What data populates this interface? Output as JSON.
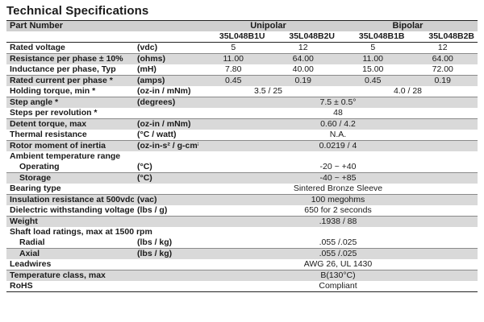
{
  "title": "Technical Specifications",
  "header": {
    "part_number": "Part Number",
    "unipolar": "Unipolar",
    "bipolar": "Bipolar",
    "models": [
      "35L048B1U",
      "35L048B2U",
      "35L048B1B",
      "35L048B2B"
    ]
  },
  "rows": {
    "rated_voltage": {
      "label": "Rated voltage",
      "unit": "(vdc)",
      "values": [
        "5",
        "12",
        "5",
        "12"
      ]
    },
    "resistance": {
      "label": "Resistance per phase ± 10%",
      "unit": "(ohms)",
      "values": [
        "11.00",
        "64.00",
        "11.00",
        "64.00"
      ]
    },
    "inductance": {
      "label": "Inductance per phase, Typ",
      "unit": "(mH)",
      "values": [
        "7.80",
        "40.00",
        "15.00",
        "72.00"
      ]
    },
    "rated_current": {
      "label": "Rated current per phase *",
      "unit": "(amps)",
      "values": [
        "0.45",
        "0.19",
        "0.45",
        "0.19"
      ]
    },
    "holding_torque": {
      "label": "Holding torque, min *",
      "unit": "(oz-in / mNm)",
      "unipolar": "3.5 / 25",
      "bipolar": "4.0 / 28"
    },
    "step_angle": {
      "label": "Step angle *",
      "unit": "(degrees)",
      "value": "7.5 ± 0.5°"
    },
    "steps_per_rev": {
      "label": "Steps per revolution *",
      "unit": "",
      "value": "48"
    },
    "detent_torque": {
      "label": "Detent torque, max",
      "unit": "(oz-in / mNm)",
      "value": "0.60 / 4.2"
    },
    "thermal_resistance": {
      "label": "Thermal resistance",
      "unit": "(°C / watt)",
      "value": "N.A."
    },
    "rotor_inertia": {
      "label": "Rotor moment of inertia",
      "unit": "(oz-in-s² / g-cm²)",
      "value": "0.0219 / 4"
    },
    "ambient_temp": {
      "label": "Ambient temperature range"
    },
    "operating": {
      "label": "Operating",
      "unit": "(°C)",
      "value": "-20 ~ +40"
    },
    "storage": {
      "label": "Storage",
      "unit": "(°C)",
      "value": "-40 ~ +85"
    },
    "bearing": {
      "label": "Bearing type",
      "unit": "",
      "value": "Sintered Bronze Sleeve"
    },
    "insulation": {
      "label": "Insulation resistance at 500vdc",
      "unit": "(vac)",
      "value": "100 megohms"
    },
    "dielectric": {
      "label": "Dielectric withstanding voltage",
      "unit": "(lbs / g)",
      "value": "650 for 2 seconds"
    },
    "weight": {
      "label": "Weight",
      "unit": "",
      "value": ".1938 / 88"
    },
    "shaft_load": {
      "label": "Shaft load ratings, max at 1500 rpm"
    },
    "radial": {
      "label": "Radial",
      "unit": "(lbs / kg)",
      "value": ".055 /.025"
    },
    "axial": {
      "label": "Axial",
      "unit": "(lbs / kg)",
      "value": ".055 /.025"
    },
    "leadwires": {
      "label": "Leadwires",
      "unit": "",
      "value": "AWG 26, UL 1430"
    },
    "temp_class": {
      "label": "Temperature class, max",
      "unit": "",
      "value": "B(130°C)"
    },
    "rohs": {
      "label": "RoHS",
      "unit": "",
      "value": "Compliant"
    }
  }
}
